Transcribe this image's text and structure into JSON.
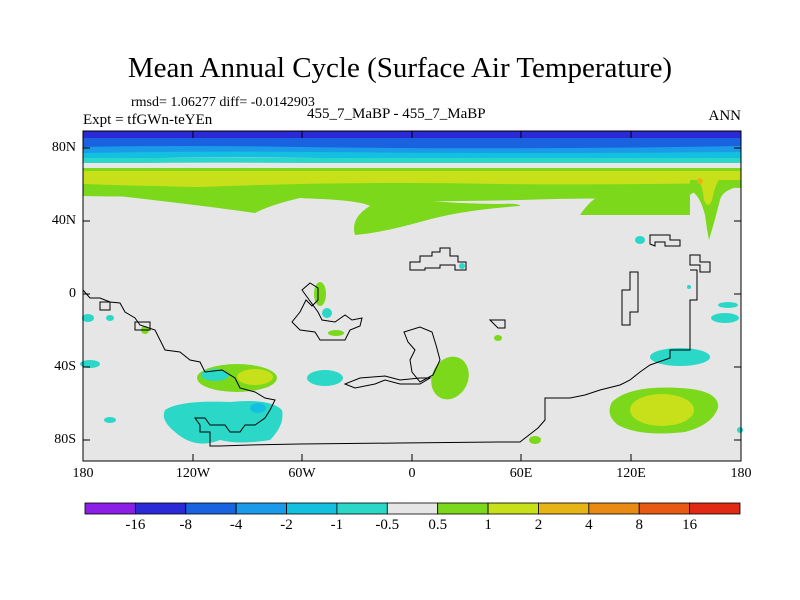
{
  "title": "Mean Annual Cycle (Surface Air Temperature)",
  "stats": "rmsd= 1.06277 diff= -0.0142903",
  "experiment": "Expt = tfGWn-teYEn",
  "subtitle": "455_7_MaBP - 455_7_MaBP",
  "season": "ANN",
  "map": {
    "background_color": "#e6e6e6",
    "lat_ticks": [
      "80N",
      "40N",
      "0",
      "40S",
      "80S"
    ],
    "lon_ticks": [
      "180",
      "120W",
      "60W",
      "0",
      "60E",
      "120E",
      "180"
    ]
  },
  "colorbar": {
    "levels": [
      "-16",
      "-8",
      "-4",
      "-2",
      "-1",
      "-0.5",
      "0.5",
      "1",
      "2",
      "4",
      "8",
      "16"
    ],
    "colors": [
      "#8c1fe6",
      "#2a2ad6",
      "#1a63e0",
      "#1a9ae8",
      "#14c0e0",
      "#2bd8c8",
      "#e6e6e6",
      "#7bd81a",
      "#c8e01a",
      "#e6b414",
      "#e88a14",
      "#e85a14",
      "#e02a14"
    ]
  }
}
